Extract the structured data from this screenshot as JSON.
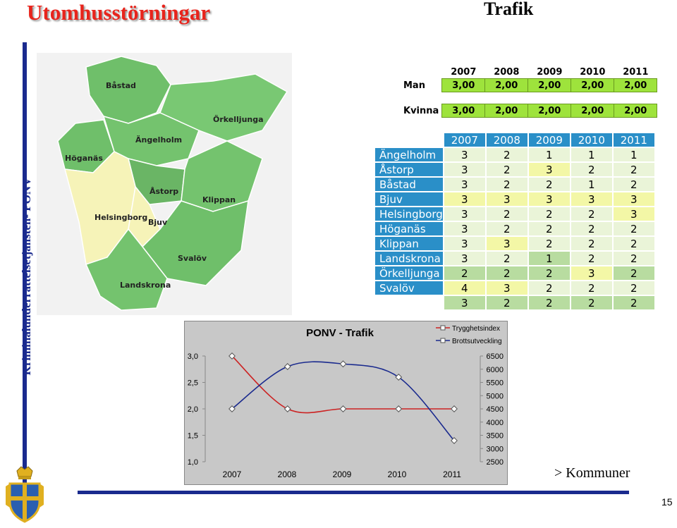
{
  "header": {
    "title": "Utomhusstörningar",
    "subtitle": "Trafik",
    "side_text": "Kriminalunderrättelsetjänsten- PONV"
  },
  "map": {
    "labels": [
      "Båstad",
      "Örkelljunga",
      "Höganäs",
      "Ängelholm",
      "Åstorp",
      "Klippan",
      "Helsingborg",
      "Bjuv",
      "Svalöv",
      "Landskrona"
    ]
  },
  "gender_table": {
    "years": [
      "2007",
      "2008",
      "2009",
      "2010",
      "2011"
    ],
    "rows": [
      {
        "label": "Man",
        "values": [
          "3,00",
          "2,00",
          "2,00",
          "2,00",
          "2,00"
        ]
      },
      {
        "label": "Kvinna",
        "values": [
          "3,00",
          "2,00",
          "2,00",
          "2,00",
          "2,00"
        ]
      }
    ]
  },
  "municipality_table": {
    "years": [
      "2007",
      "2008",
      "2009",
      "2010",
      "2011"
    ],
    "rows": [
      {
        "name": "Ängelholm",
        "values": [
          "3",
          "2",
          "1",
          "1",
          "1"
        ]
      },
      {
        "name": "Åstorp",
        "values": [
          "3",
          "2",
          "3",
          "2",
          "2"
        ]
      },
      {
        "name": "Båstad",
        "values": [
          "3",
          "2",
          "2",
          "1",
          "2"
        ]
      },
      {
        "name": "Bjuv",
        "values": [
          "3",
          "3",
          "3",
          "3",
          "3"
        ]
      },
      {
        "name": "Helsingborg",
        "values": [
          "3",
          "2",
          "2",
          "2",
          "3"
        ]
      },
      {
        "name": "Höganäs",
        "values": [
          "3",
          "2",
          "2",
          "2",
          "2"
        ]
      },
      {
        "name": "Klippan",
        "values": [
          "3",
          "3",
          "2",
          "2",
          "2"
        ]
      },
      {
        "name": "Landskrona",
        "values": [
          "3",
          "2",
          "1",
          "2",
          "2"
        ]
      },
      {
        "name": "Örkelljunga",
        "values": [
          "2",
          "2",
          "2",
          "3",
          "2"
        ]
      },
      {
        "name": "Svalöv",
        "values": [
          "4",
          "3",
          "2",
          "2",
          "2"
        ]
      },
      {
        "name": "",
        "values": [
          "3",
          "2",
          "2",
          "2",
          "2"
        ]
      }
    ],
    "colors": {
      "header": "#2a8fc8",
      "white": "#eaf4d8",
      "yellow": "#f3f7a6",
      "green": "#b8dca0"
    }
  },
  "chart_data": {
    "type": "line",
    "title": "PONV - Trafik",
    "categories": [
      "2007",
      "2008",
      "2009",
      "2010",
      "2011"
    ],
    "series": [
      {
        "name": "Trygghetsindex",
        "axis": "left",
        "color": "#cc2222",
        "values": [
          3.0,
          2.0,
          2.0,
          2.0,
          2.0
        ]
      },
      {
        "name": "Brottsutveckling",
        "axis": "right",
        "color": "#1a2a8e",
        "values": [
          4500,
          6100,
          6200,
          5700,
          3300
        ]
      }
    ],
    "y_left": {
      "range": [
        1.0,
        3.0
      ],
      "ticks": [
        "3,0",
        "2,5",
        "2,0",
        "1,5",
        "1,0"
      ]
    },
    "y_right": {
      "range": [
        2500,
        6500
      ],
      "ticks": [
        "6500",
        "6000",
        "5500",
        "5000",
        "4500",
        "4000",
        "3500",
        "3000",
        "2500"
      ]
    },
    "legend": "top-right"
  },
  "footer": {
    "link": "> Kommuner",
    "page": "15"
  }
}
